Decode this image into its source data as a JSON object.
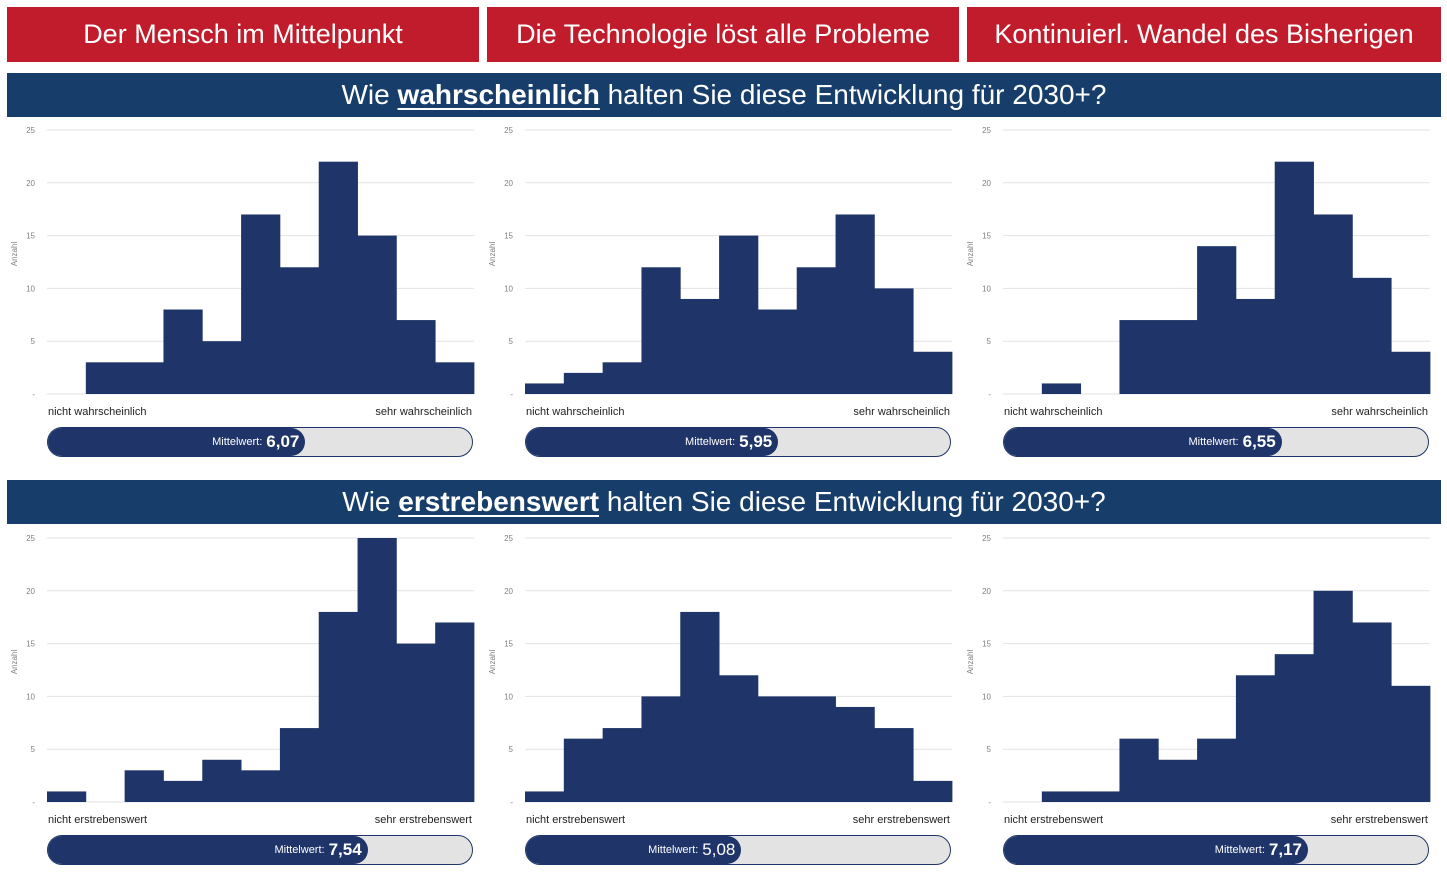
{
  "scenarios": [
    "Der Mensch im Mittelpunkt",
    "Die Technologie löst alle Probleme",
    "Kontinuierl. Wandel des Bisherigen"
  ],
  "questions": [
    {
      "pre": "Wie",
      "highlight": "wahrscheinlich",
      "post": "halten Sie diese Entwicklung für 2030+?"
    },
    {
      "pre": "Wie",
      "highlight": "erstrebenswert",
      "post": "halten Sie diese Entwicklung für 2030+?"
    }
  ],
  "colors": {
    "scenario_bg": "#c01c2c",
    "question_bg": "#173d6b",
    "bar": "#1f3468",
    "track": "#e3e3e3"
  },
  "mean_label": "Mittelwert:",
  "chart_data": [
    {
      "type": "bar",
      "question": "wahrscheinlich",
      "scenario": "Der Mensch im Mittelpunkt",
      "ylabel": "Anzahl",
      "ylim": [
        0,
        25
      ],
      "yticks": [
        "-",
        "5",
        "10",
        "15",
        "20",
        "25"
      ],
      "categories": [
        1,
        2,
        3,
        4,
        5,
        6,
        7,
        8,
        9,
        10,
        11
      ],
      "values": [
        0,
        3,
        3,
        8,
        5,
        17,
        12,
        22,
        15,
        7,
        3
      ],
      "label_low": "nicht wahrscheinlich",
      "label_high": "sehr wahrscheinlich",
      "mean": 6.07,
      "mean_text": "6,07",
      "mean_bold": true
    },
    {
      "type": "bar",
      "question": "wahrscheinlich",
      "scenario": "Die Technologie löst alle Probleme",
      "ylabel": "Anzahl",
      "ylim": [
        0,
        25
      ],
      "yticks": [
        "-",
        "5",
        "10",
        "15",
        "20",
        "25"
      ],
      "categories": [
        1,
        2,
        3,
        4,
        5,
        6,
        7,
        8,
        9,
        10,
        11
      ],
      "values": [
        1,
        2,
        3,
        12,
        9,
        15,
        8,
        12,
        17,
        10,
        4
      ],
      "label_low": "nicht wahrscheinlich",
      "label_high": "sehr wahrscheinlich",
      "mean": 5.95,
      "mean_text": "5,95",
      "mean_bold": true
    },
    {
      "type": "bar",
      "question": "wahrscheinlich",
      "scenario": "Kontinuierl. Wandel des Bisherigen",
      "ylabel": "Anzahl",
      "ylim": [
        0,
        25
      ],
      "yticks": [
        "-",
        "5",
        "10",
        "15",
        "20",
        "25"
      ],
      "categories": [
        1,
        2,
        3,
        4,
        5,
        6,
        7,
        8,
        9,
        10,
        11
      ],
      "values": [
        0,
        1,
        0,
        7,
        7,
        14,
        9,
        22,
        17,
        11,
        4
      ],
      "label_low": "nicht wahrscheinlich",
      "label_high": "sehr wahrscheinlich",
      "mean": 6.55,
      "mean_text": "6,55",
      "mean_bold": true
    },
    {
      "type": "bar",
      "question": "erstrebenswert",
      "scenario": "Der Mensch im Mittelpunkt",
      "ylabel": "Anzahl",
      "ylim": [
        0,
        25
      ],
      "yticks": [
        "-",
        "5",
        "10",
        "15",
        "20",
        "25"
      ],
      "categories": [
        1,
        2,
        3,
        4,
        5,
        6,
        7,
        8,
        9,
        10,
        11
      ],
      "values": [
        1,
        0,
        3,
        2,
        4,
        3,
        7,
        18,
        25,
        15,
        17
      ],
      "label_low": "nicht erstrebenswert",
      "label_high": "sehr erstrebenswert",
      "mean": 7.54,
      "mean_text": "7,54",
      "mean_bold": true
    },
    {
      "type": "bar",
      "question": "erstrebenswert",
      "scenario": "Die Technologie löst alle Probleme",
      "ylabel": "Anzahl",
      "ylim": [
        0,
        25
      ],
      "yticks": [
        "-",
        "5",
        "10",
        "15",
        "20",
        "25"
      ],
      "categories": [
        1,
        2,
        3,
        4,
        5,
        6,
        7,
        8,
        9,
        10,
        11
      ],
      "values": [
        1,
        6,
        7,
        10,
        18,
        12,
        10,
        10,
        9,
        7,
        2
      ],
      "label_low": "nicht erstrebenswert",
      "label_high": "sehr erstrebenswert",
      "mean": 5.08,
      "mean_text": "5,08",
      "mean_bold": false
    },
    {
      "type": "bar",
      "question": "erstrebenswert",
      "scenario": "Kontinuierl. Wandel des Bisherigen",
      "ylabel": "Anzahl",
      "ylim": [
        0,
        25
      ],
      "yticks": [
        "-",
        "5",
        "10",
        "15",
        "20",
        "25"
      ],
      "categories": [
        1,
        2,
        3,
        4,
        5,
        6,
        7,
        8,
        9,
        10,
        11
      ],
      "values": [
        0,
        1,
        1,
        6,
        4,
        6,
        12,
        14,
        20,
        17,
        11
      ],
      "label_low": "nicht erstrebenswert",
      "label_high": "sehr erstrebenswert",
      "mean": 7.17,
      "mean_text": "7,17",
      "mean_bold": true
    }
  ]
}
